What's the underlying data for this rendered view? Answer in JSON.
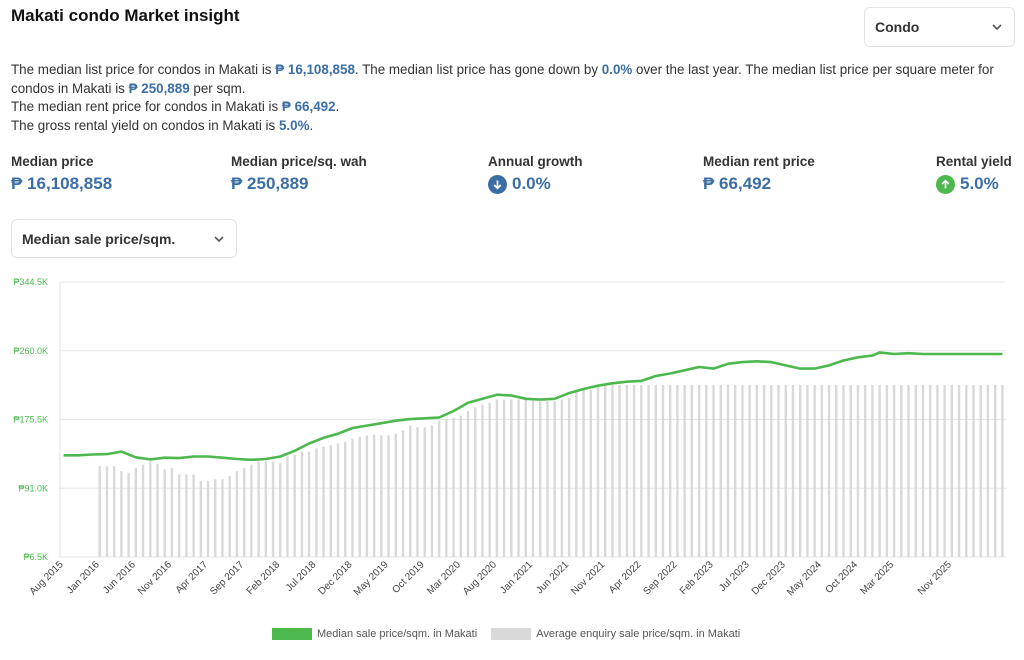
{
  "header": {
    "title": "Makati condo Market insight"
  },
  "property_type_dropdown": {
    "value": "Condo"
  },
  "summary": {
    "line1_a": "The median list price for condos in Makati is ",
    "line1_price": "₱ 16,108,858",
    "line1_b": ". The median list price has gone down by ",
    "line1_change": "0.0%",
    "line1_c": " over the last year. The median list price per square meter for condos in Makati is ",
    "line1_sqm": "₱ 250,889",
    "line1_d": " per sqm.",
    "line2_a": "The median rent price for condos in Makati is ",
    "line2_rent": "₱ 66,492",
    "line2_b": ".",
    "line3_a": "The gross rental yield on condos in Makati is ",
    "line3_yield": "5.0%",
    "line3_b": "."
  },
  "stats": [
    {
      "label": "Median price",
      "value": "₱ 16,108,858"
    },
    {
      "label": "Median price/sq. wah",
      "value": "₱ 250,889"
    },
    {
      "label": "Annual growth",
      "value": "0.0%",
      "icon": "arrow-down-circle-icon"
    },
    {
      "label": "Median rent price",
      "value": "₱ 66,492"
    },
    {
      "label": "Rental yield",
      "value": "5.0%",
      "icon": "arrow-up-circle-icon"
    }
  ],
  "metric_dropdown": {
    "value": "Median sale price/sqm."
  },
  "colors": {
    "accent": "#3b6ea5",
    "line": "#4cb84e",
    "bar": "#d9d9d9",
    "up": "#4cb84e",
    "down": "#3b6ea5"
  },
  "chart_data": {
    "type": "bar+line",
    "y_ticks": [
      "₱6.5K",
      "₱91.0K",
      "₱175.5K",
      "₱260.0K",
      "₱344.5K"
    ],
    "ylim": [
      6.5,
      344.5
    ],
    "x_tick_labels": [
      "Aug 2015",
      "Jan 2016",
      "Jun 2016",
      "Nov 2016",
      "Apr 2017",
      "Sep 2017",
      "Feb 2018",
      "Jul 2018",
      "Dec 2018",
      "May 2019",
      "Oct 2019",
      "Mar 2020",
      "Aug 2020",
      "Jan 2021",
      "Jun 2021",
      "Nov 2021",
      "Apr 2022",
      "Sep 2022",
      "Feb 2023",
      "Jul 2023",
      "Dec 2023",
      "May 2024",
      "Oct 2024",
      "Mar 2025",
      "Nov 2025"
    ],
    "series": [
      {
        "name": "Median sale price/sqm. in Makati",
        "kind": "line",
        "points": [
          [
            0,
            131.5
          ],
          [
            2,
            131.5
          ],
          [
            4,
            132.5
          ],
          [
            6,
            133
          ],
          [
            8,
            136
          ],
          [
            10,
            129
          ],
          [
            12,
            126.5
          ],
          [
            14,
            128.5
          ],
          [
            16,
            128
          ],
          [
            18,
            130
          ],
          [
            20,
            130
          ],
          [
            22,
            128.5
          ],
          [
            24,
            127
          ],
          [
            26,
            126
          ],
          [
            28,
            127
          ],
          [
            30,
            130
          ],
          [
            32,
            137
          ],
          [
            34,
            146
          ],
          [
            36,
            153
          ],
          [
            38,
            158
          ],
          [
            40,
            165
          ],
          [
            42,
            168
          ],
          [
            44,
            171
          ],
          [
            46,
            174
          ],
          [
            48,
            176
          ],
          [
            50,
            177
          ],
          [
            52,
            178
          ],
          [
            54,
            186
          ],
          [
            56,
            196
          ],
          [
            58,
            201
          ],
          [
            60,
            206
          ],
          [
            62,
            205
          ],
          [
            64,
            201
          ],
          [
            66,
            200
          ],
          [
            68,
            201
          ],
          [
            70,
            208
          ],
          [
            72,
            213
          ],
          [
            74,
            217
          ],
          [
            76,
            220
          ],
          [
            78,
            222
          ],
          [
            80,
            223
          ],
          [
            82,
            229
          ],
          [
            84,
            232
          ],
          [
            86,
            236
          ],
          [
            88,
            240
          ],
          [
            90,
            238
          ],
          [
            92,
            244
          ],
          [
            94,
            246
          ],
          [
            96,
            247
          ],
          [
            98,
            246
          ],
          [
            100,
            242
          ],
          [
            102,
            238
          ],
          [
            104,
            238
          ],
          [
            106,
            242
          ],
          [
            108,
            248
          ],
          [
            110,
            252
          ],
          [
            112,
            254
          ],
          [
            113,
            258
          ],
          [
            115,
            256
          ],
          [
            117,
            257
          ],
          [
            119,
            256
          ],
          [
            121,
            256
          ],
          [
            124,
            256
          ],
          [
            128,
            256
          ],
          [
            130,
            256
          ]
        ]
      },
      {
        "name": "Average enquiry sale price/sqm. in Makati",
        "kind": "bar",
        "bar_start_index": 5,
        "values": [
          118,
          118,
          118,
          112,
          110,
          116,
          120,
          124,
          121,
          114,
          116,
          108,
          108,
          108,
          100,
          100,
          102,
          102,
          106,
          112,
          116,
          120,
          124,
          124,
          124,
          122,
          130,
          132,
          136,
          136,
          140,
          142,
          144,
          146,
          148,
          152,
          154,
          156,
          157,
          156,
          156,
          158,
          162,
          168,
          166,
          166,
          168,
          174,
          176,
          178,
          180,
          186,
          190,
          194,
          196,
          200,
          200,
          200,
          200,
          200,
          200,
          198,
          198,
          198,
          200,
          202,
          212,
          212,
          212,
          218,
          218,
          218,
          218,
          218,
          218,
          218,
          218,
          218,
          218,
          218,
          218,
          218,
          218,
          218,
          218,
          218,
          218,
          218,
          218,
          218,
          218,
          218,
          218,
          218,
          218,
          218,
          218,
          218,
          218,
          218,
          218,
          218,
          218,
          218,
          218,
          218,
          218,
          218,
          218,
          218,
          218,
          218,
          218,
          218,
          218,
          218,
          218,
          218,
          218,
          218,
          218,
          218,
          218,
          218,
          218,
          218
        ]
      }
    ],
    "legend": [
      "Median sale price/sqm. in Makati",
      "Average enquiry sale price/sqm. in Makati"
    ],
    "grid": true,
    "legend_position": "bottom"
  }
}
